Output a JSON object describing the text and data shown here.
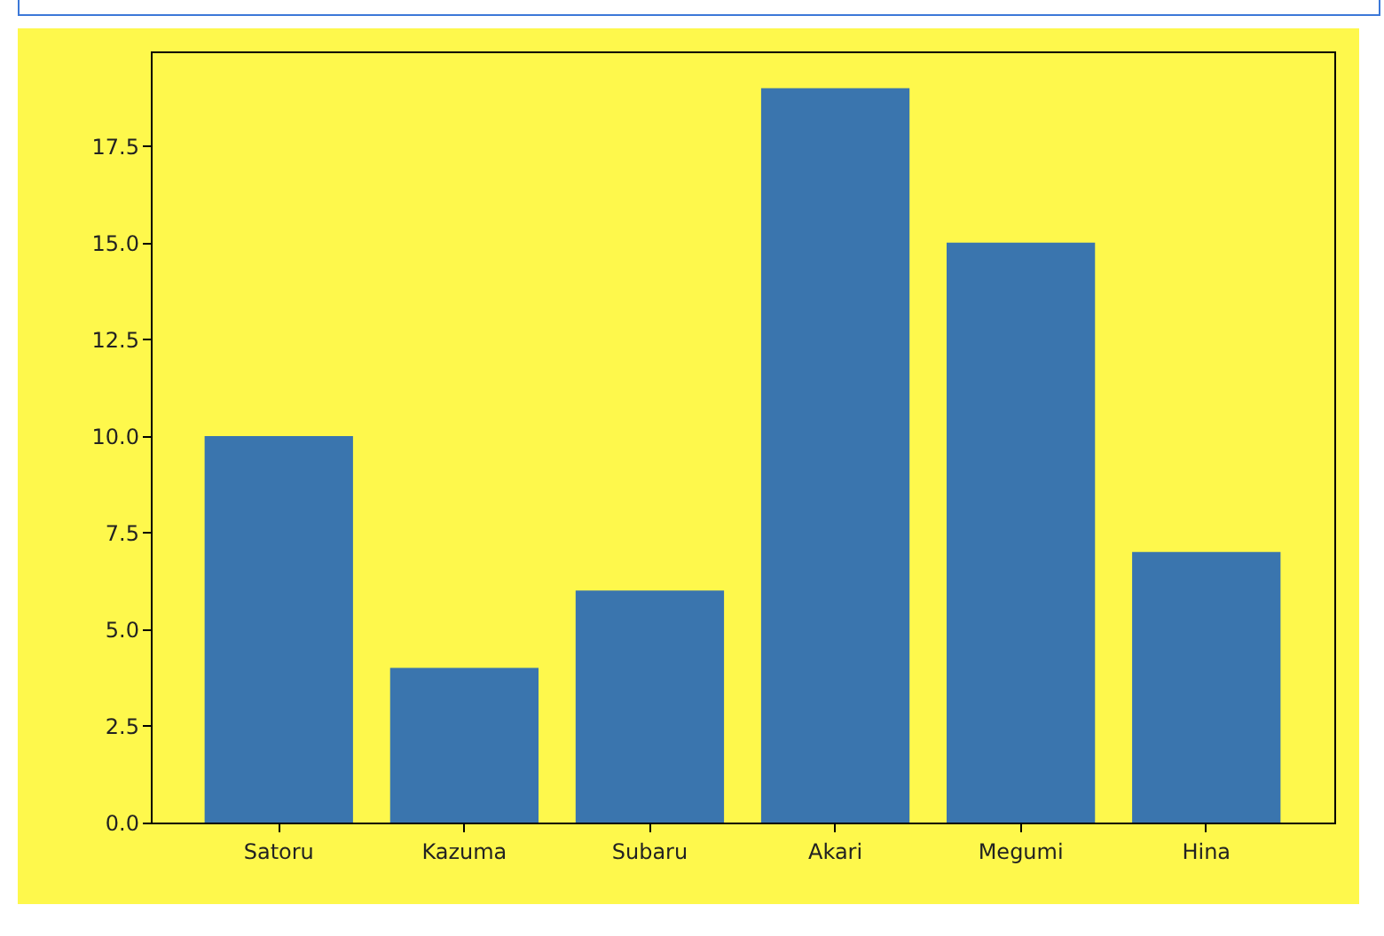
{
  "chart_data": {
    "type": "bar",
    "categories": [
      "Satoru",
      "Kazuma",
      "Subaru",
      "Akari",
      "Megumi",
      "Hina"
    ],
    "values": [
      10,
      4,
      6,
      19,
      15,
      7
    ],
    "color": "#3a75ae",
    "ylim": [
      0,
      19.95
    ],
    "yticks": [
      {
        "value": 0,
        "label": "0.0"
      },
      2.5,
      {
        "value": 5,
        "label": "5.0"
      },
      7.5,
      {
        "value": 10,
        "label": "10.0"
      },
      12.5,
      {
        "value": 15,
        "label": "15.0"
      },
      17.5
    ],
    "grid": false
  }
}
